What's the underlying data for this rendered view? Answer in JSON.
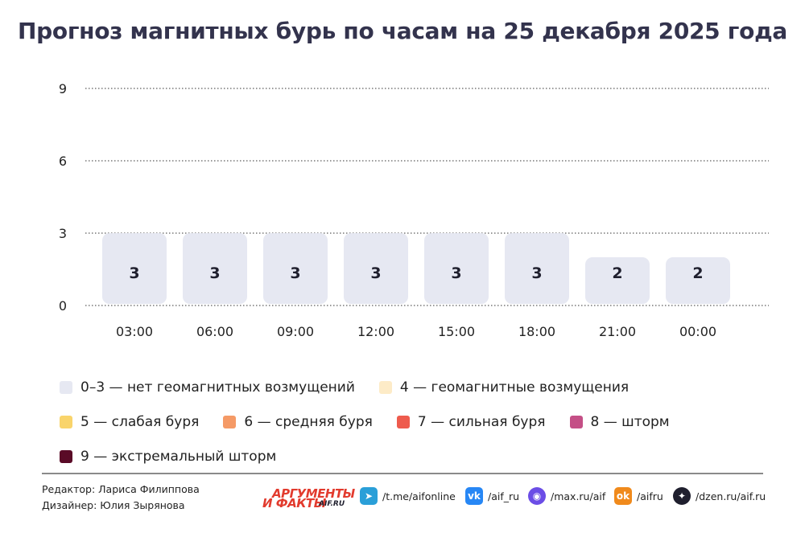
{
  "title": "Прогноз магнитных бурь по часам на 25 декабря 2025 года",
  "chart_data": {
    "type": "bar",
    "categories": [
      "03:00",
      "06:00",
      "09:00",
      "12:00",
      "15:00",
      "18:00",
      "21:00",
      "00:00"
    ],
    "values": [
      3,
      3,
      3,
      3,
      3,
      3,
      2,
      2
    ],
    "yticks": [
      0,
      3,
      6,
      9
    ],
    "ylim": [
      0,
      9
    ],
    "grid": "dotted horizontal",
    "bar_color": "#e6e8f2"
  },
  "legend": [
    {
      "label": "0–3 — нет геомагнитных возмущений",
      "color": "#e6e8f2"
    },
    {
      "label": "4 — геомагнитные возмущения",
      "color": "#fdebc7"
    },
    {
      "label": "5 — слабая буря",
      "color": "#f9d46b"
    },
    {
      "label": "6 — средняя буря",
      "color": "#f59a66"
    },
    {
      "label": "7 — сильная буря",
      "color": "#ee5b4d"
    },
    {
      "label": "8 — шторм",
      "color": "#c44f86"
    },
    {
      "label": "9 — экстремальный шторм",
      "color": "#5a0b27"
    }
  ],
  "footer": {
    "editor": "Редактор: Лариса Филиппова",
    "designer": "Дизайнер: Юлия Зырянова",
    "logo_line1": "АРГУМЕНТЫ",
    "logo_line2": "И ФАКТЫ",
    "logo_site": "AIF.RU",
    "social": [
      {
        "icon": "telegram-icon",
        "text": "/t.me/aifonline",
        "color": "#2a9fd8"
      },
      {
        "icon": "vk-icon",
        "text": "/aif_ru",
        "color": "#2787f5"
      },
      {
        "icon": "max-icon",
        "text": "/max.ru/aif",
        "color": "#6b4de6"
      },
      {
        "icon": "odnoklassniki-icon",
        "text": "/aifru",
        "color": "#f08a1c"
      },
      {
        "icon": "dzen-icon",
        "text": "/dzen.ru/aif.ru",
        "color": "#1f1f2e"
      }
    ]
  }
}
